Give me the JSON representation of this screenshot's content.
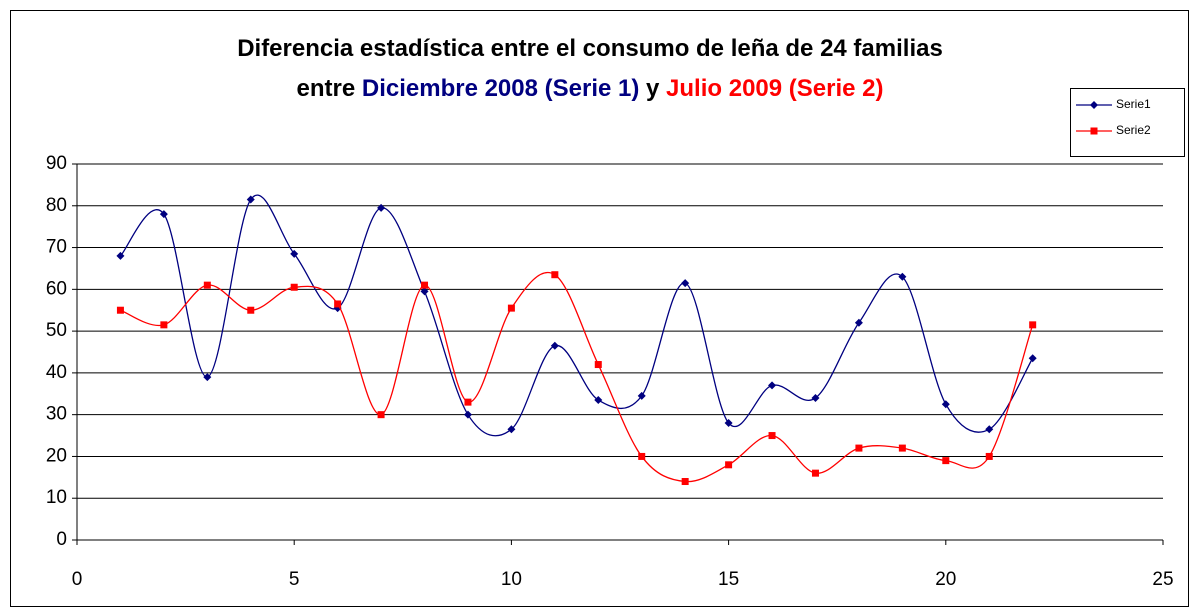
{
  "chart_data": {
    "type": "line",
    "title_lines": [
      [
        {
          "text": "Diferencia estadística entre el consumo de leña de 24 familias",
          "color": "#000000"
        }
      ],
      [
        {
          "text": "entre ",
          "color": "#000000"
        },
        {
          "text": "Diciembre 2008 (Serie 1)",
          "color": "#000080"
        },
        {
          "text": " y ",
          "color": "#000000"
        },
        {
          "text": "Julio 2009 (Serie 2)",
          "color": "#ff0000"
        }
      ]
    ],
    "x": [
      1,
      2,
      3,
      4,
      5,
      6,
      7,
      8,
      9,
      10,
      11,
      12,
      13,
      14,
      15,
      16,
      17,
      18,
      19,
      20,
      21,
      22
    ],
    "series": [
      {
        "name": "Serie1",
        "color": "#000080",
        "marker": "diamond",
        "values": [
          68,
          78,
          39,
          81.5,
          68.5,
          55.5,
          79.5,
          59.5,
          30,
          26.5,
          46.5,
          33.5,
          34.5,
          61.5,
          28,
          37,
          34,
          52,
          63,
          32.5,
          26.5,
          43.5
        ]
      },
      {
        "name": "Serie2",
        "color": "#ff0000",
        "marker": "square",
        "values": [
          55,
          51.5,
          61,
          55,
          60.5,
          56.5,
          30,
          61,
          33,
          55.5,
          63.5,
          42,
          20,
          14,
          18,
          25,
          16,
          22,
          22,
          19,
          20,
          51.5
        ]
      }
    ],
    "xlim": [
      0,
      25
    ],
    "xticks": [
      0,
      5,
      10,
      15,
      20,
      25
    ],
    "ylim": [
      0,
      90
    ],
    "yticks": [
      0,
      10,
      20,
      30,
      40,
      50,
      60,
      70,
      80,
      90
    ],
    "grid": true,
    "smooth": true,
    "legend": "top-right"
  }
}
